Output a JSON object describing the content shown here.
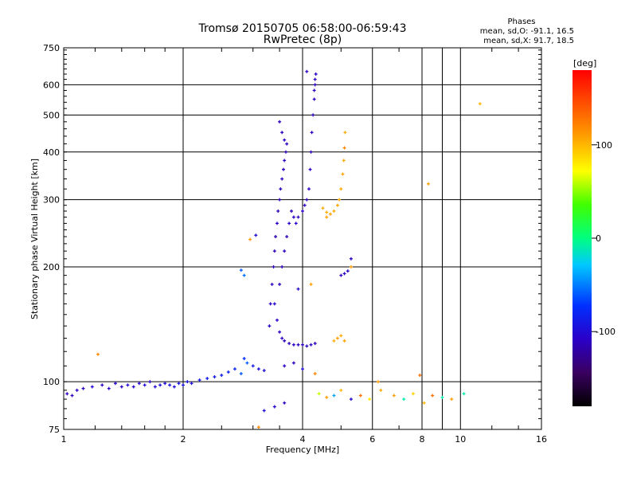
{
  "chart_data": {
    "type": "scatter",
    "title": "Tromsø 20150705 06:58:00-06:59:43",
    "subtitle": "RwPretec (8p)",
    "xlabel": "Frequency [MHz]",
    "ylabel": "Stationary phase Virtual Height [km]",
    "x_scale": "log",
    "y_scale": "log",
    "xlim": [
      1,
      16
    ],
    "ylim": [
      75,
      750
    ],
    "grid": true,
    "x_ticks": [
      1,
      2,
      4,
      6,
      8,
      10,
      16
    ],
    "x_tick_labels": [
      "1",
      "2",
      "4",
      "6",
      "8",
      "10",
      "16"
    ],
    "y_ticks": [
      75,
      100,
      200,
      300,
      400,
      500,
      600,
      750
    ],
    "y_tick_labels": [
      "75",
      "100",
      "200",
      "300",
      "400",
      "500",
      "600",
      "750"
    ],
    "stats": {
      "header": "Phases",
      "line1": "mean, sd,O: -91.1, 16.5",
      "line2": "mean, sd,X:  91.7, 18.5"
    },
    "colorbar": {
      "label": "[deg]",
      "min": -180,
      "max": 180,
      "ticks": [
        100,
        0,
        -100
      ],
      "tick_labels": [
        "100",
        "0",
        "-100"
      ]
    },
    "series": [
      {
        "points": [
          [
            1.02,
            93,
            -110
          ],
          [
            1.05,
            92,
            -112
          ],
          [
            1.08,
            95,
            -108
          ],
          [
            1.12,
            96,
            -110
          ],
          [
            1.18,
            97,
            -105
          ],
          [
            1.25,
            98,
            -110
          ],
          [
            1.3,
            96,
            -108
          ],
          [
            1.35,
            99,
            -105
          ],
          [
            1.4,
            97,
            -110
          ],
          [
            1.45,
            98,
            -100
          ],
          [
            1.5,
            97,
            -105
          ],
          [
            1.55,
            99,
            -102
          ],
          [
            1.6,
            98,
            -100
          ],
          [
            1.65,
            100,
            -105
          ],
          [
            1.7,
            97,
            -100
          ],
          [
            1.75,
            98,
            -98
          ],
          [
            1.8,
            99,
            -100
          ],
          [
            1.85,
            98,
            -95
          ],
          [
            1.9,
            97,
            -98
          ],
          [
            1.95,
            99,
            -95
          ],
          [
            2.0,
            98,
            -95
          ],
          [
            2.05,
            100,
            -92
          ],
          [
            2.1,
            99,
            -95
          ],
          [
            2.2,
            101,
            -92
          ],
          [
            2.3,
            102,
            -88
          ],
          [
            2.4,
            103,
            -90
          ],
          [
            2.5,
            104,
            -85
          ],
          [
            2.6,
            106,
            -82
          ],
          [
            2.7,
            108,
            -80
          ],
          [
            2.8,
            105,
            -60
          ],
          [
            2.85,
            115,
            -75
          ],
          [
            2.9,
            112,
            -60
          ],
          [
            3.0,
            110,
            -90
          ],
          [
            3.1,
            108,
            -95
          ],
          [
            3.2,
            107,
            -100
          ],
          [
            1.22,
            118,
            120
          ],
          [
            2.95,
            236,
            110
          ],
          [
            3.05,
            242,
            -100
          ],
          [
            2.8,
            196,
            -60
          ],
          [
            2.85,
            190,
            -55
          ],
          [
            3.2,
            84,
            -100
          ],
          [
            3.4,
            86,
            -105
          ],
          [
            3.6,
            88,
            -110
          ],
          [
            3.1,
            76,
            120
          ],
          [
            3.3,
            140,
            -105
          ],
          [
            3.32,
            160,
            -108
          ],
          [
            3.35,
            180,
            -110
          ],
          [
            3.38,
            200,
            -112
          ],
          [
            3.4,
            220,
            -115
          ],
          [
            3.42,
            240,
            -113
          ],
          [
            3.45,
            260,
            -110
          ],
          [
            3.47,
            280,
            -112
          ],
          [
            3.5,
            300,
            -115
          ],
          [
            3.52,
            320,
            -112
          ],
          [
            3.55,
            340,
            -110
          ],
          [
            3.58,
            360,
            -112
          ],
          [
            3.6,
            380,
            -110
          ],
          [
            3.63,
            400,
            -112
          ],
          [
            3.65,
            420,
            -110
          ],
          [
            3.5,
            480,
            -110
          ],
          [
            3.55,
            450,
            -112
          ],
          [
            3.6,
            430,
            -110
          ],
          [
            3.4,
            160,
            -105
          ],
          [
            3.45,
            145,
            -108
          ],
          [
            3.5,
            135,
            -110
          ],
          [
            3.55,
            130,
            -110
          ],
          [
            3.6,
            128,
            -112
          ],
          [
            3.7,
            126,
            -112
          ],
          [
            3.8,
            125,
            -110
          ],
          [
            3.9,
            125,
            -110
          ],
          [
            4.0,
            125,
            -112
          ],
          [
            4.1,
            124,
            -110
          ],
          [
            4.2,
            125,
            -110
          ],
          [
            4.3,
            126,
            -112
          ],
          [
            3.5,
            180,
            -110
          ],
          [
            3.55,
            200,
            -112
          ],
          [
            3.6,
            220,
            -110
          ],
          [
            3.65,
            240,
            -112
          ],
          [
            3.7,
            260,
            -110
          ],
          [
            3.75,
            280,
            -112
          ],
          [
            3.8,
            270,
            -110
          ],
          [
            3.85,
            260,
            -108
          ],
          [
            3.9,
            270,
            -110
          ],
          [
            4.0,
            280,
            -108
          ],
          [
            4.05,
            290,
            -110
          ],
          [
            4.1,
            300,
            -112
          ],
          [
            4.15,
            320,
            -110
          ],
          [
            4.18,
            360,
            -110
          ],
          [
            4.2,
            400,
            -112
          ],
          [
            4.22,
            450,
            -110
          ],
          [
            4.25,
            500,
            -112
          ],
          [
            4.28,
            550,
            -110
          ],
          [
            4.3,
            600,
            -112
          ],
          [
            4.32,
            640,
            -110
          ],
          [
            4.1,
            650,
            -108
          ],
          [
            4.3,
            620,
            -110
          ],
          [
            4.28,
            580,
            -112
          ],
          [
            4.5,
            285,
            105
          ],
          [
            4.6,
            278,
            105
          ],
          [
            4.7,
            275,
            108
          ],
          [
            4.8,
            280,
            105
          ],
          [
            4.9,
            290,
            108
          ],
          [
            4.95,
            300,
            105
          ],
          [
            5.0,
            320,
            105
          ],
          [
            5.05,
            350,
            108
          ],
          [
            5.08,
            380,
            105
          ],
          [
            5.1,
            410,
            120
          ],
          [
            5.12,
            450,
            105
          ],
          [
            4.6,
            270,
            108
          ],
          [
            4.8,
            128,
            105
          ],
          [
            4.9,
            130,
            108
          ],
          [
            5.0,
            132,
            105
          ],
          [
            5.1,
            128,
            108
          ],
          [
            5.0,
            190,
            -110
          ],
          [
            5.1,
            192,
            -108
          ],
          [
            5.2,
            195,
            -110
          ],
          [
            5.3,
            210,
            -110
          ],
          [
            5.3,
            200,
            110
          ],
          [
            4.2,
            180,
            110
          ],
          [
            3.9,
            175,
            -105
          ],
          [
            3.6,
            110,
            -110
          ],
          [
            3.8,
            112,
            -108
          ],
          [
            4.0,
            108,
            -100
          ],
          [
            4.3,
            105,
            120
          ],
          [
            4.4,
            93,
            60
          ],
          [
            4.6,
            91,
            110
          ],
          [
            4.8,
            92,
            -40
          ],
          [
            5.0,
            95,
            100
          ],
          [
            5.3,
            90,
            -100
          ],
          [
            5.6,
            92,
            130
          ],
          [
            5.9,
            90,
            80
          ],
          [
            6.3,
            95,
            105
          ],
          [
            6.8,
            92,
            110
          ],
          [
            7.2,
            90,
            -10
          ],
          [
            7.6,
            93,
            90
          ],
          [
            8.1,
            88,
            100
          ],
          [
            8.5,
            92,
            130
          ],
          [
            9.0,
            91,
            -10
          ],
          [
            9.5,
            90,
            110
          ],
          [
            10.2,
            93,
            -10
          ],
          [
            6.2,
            100,
            110
          ],
          [
            7.9,
            104,
            130
          ],
          [
            8.3,
            330,
            110
          ],
          [
            11.2,
            535,
            100
          ]
        ]
      }
    ]
  }
}
